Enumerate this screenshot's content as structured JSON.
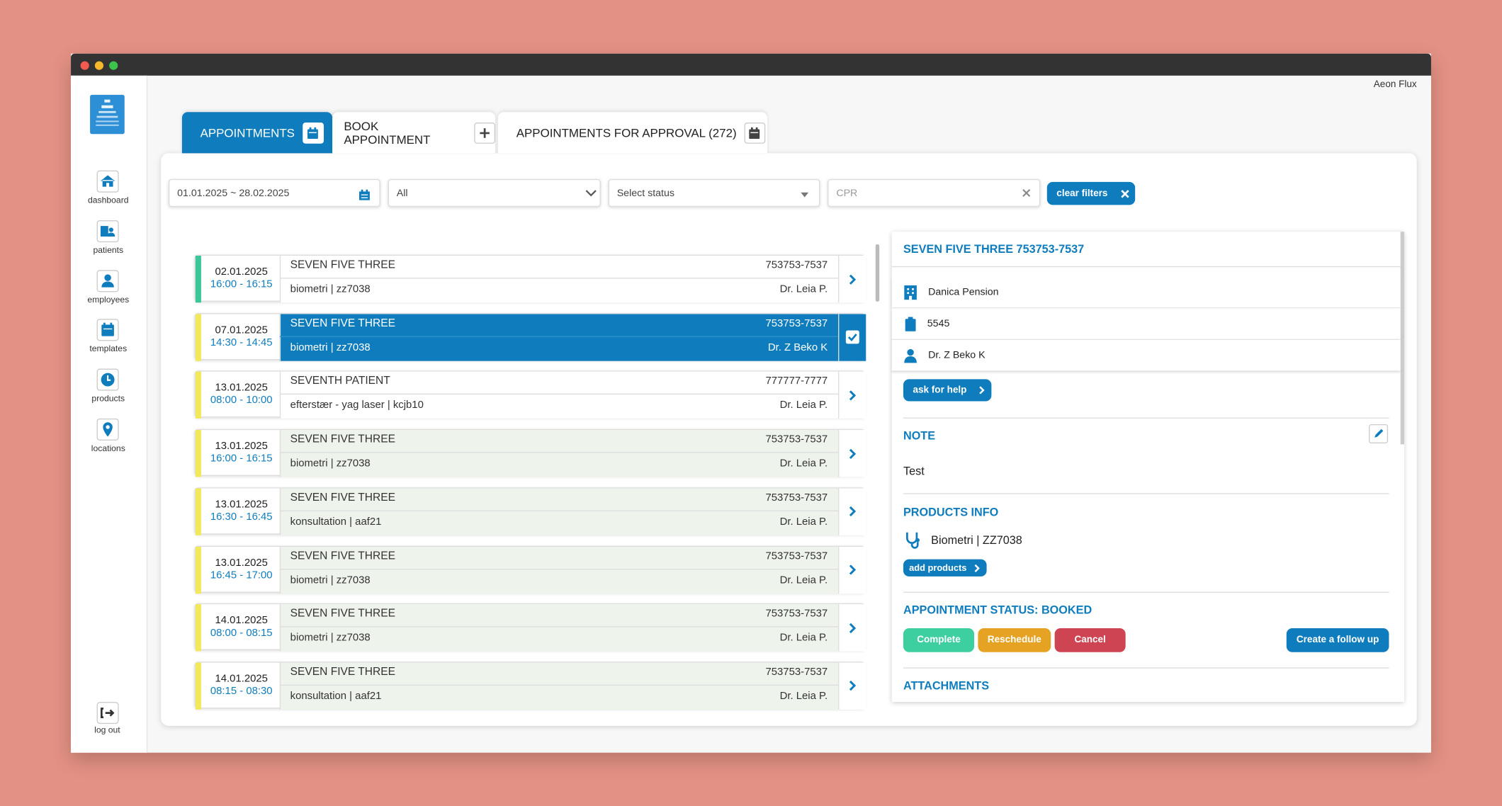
{
  "window": {
    "user": "Aeon Flux"
  },
  "nav": [
    {
      "label": "dashboard"
    },
    {
      "label": "patients"
    },
    {
      "label": "employees"
    },
    {
      "label": "templates"
    },
    {
      "label": "products"
    },
    {
      "label": "locations"
    }
  ],
  "logout": "log out",
  "tabs": [
    {
      "label": "APPOINTMENTS",
      "active": true
    },
    {
      "label": "BOOK APPOINTMENT",
      "active": false
    },
    {
      "label": "APPOINTMENTS FOR APPROVAL (272)",
      "active": false
    }
  ],
  "filters": {
    "date_range": "01.01.2025 ~ 28.02.2025",
    "location": "All",
    "status": "Select status",
    "cpr": "CPR",
    "clear": "clear filters"
  },
  "appointments": [
    {
      "date": "02.01.2025",
      "time": "16:00 - 16:15",
      "name": "SEVEN FIVE THREE",
      "cpr": "753753-7537",
      "description": "biometri | zz7038",
      "doctor": "Dr. Leia P.",
      "accent": "#3cc79b",
      "shaded": false,
      "selected": false
    },
    {
      "date": "07.01.2025",
      "time": "14:30 - 14:45",
      "name": "SEVEN FIVE THREE",
      "cpr": "753753-7537",
      "description": "biometri | zz7038",
      "doctor": "Dr. Z Beko K",
      "accent": "#f2e85b",
      "shaded": false,
      "selected": true
    },
    {
      "date": "13.01.2025",
      "time": "08:00 - 10:00",
      "name": "SEVENTH PATIENT",
      "cpr": "777777-7777",
      "description": "efterstær - yag laser | kcjb10",
      "doctor": "Dr. Leia P.",
      "accent": "#f2e85b",
      "shaded": false,
      "selected": false
    },
    {
      "date": "13.01.2025",
      "time": "16:00 - 16:15",
      "name": "SEVEN FIVE THREE",
      "cpr": "753753-7537",
      "description": "biometri | zz7038",
      "doctor": "Dr. Leia P.",
      "accent": "#f2e85b",
      "shaded": true,
      "selected": false
    },
    {
      "date": "13.01.2025",
      "time": "16:30 - 16:45",
      "name": "SEVEN FIVE THREE",
      "cpr": "753753-7537",
      "description": "konsultation | aaf21",
      "doctor": "Dr. Leia P.",
      "accent": "#f2e85b",
      "shaded": true,
      "selected": false
    },
    {
      "date": "13.01.2025",
      "time": "16:45 - 17:00",
      "name": "SEVEN FIVE THREE",
      "cpr": "753753-7537",
      "description": "biometri | zz7038",
      "doctor": "Dr. Leia P.",
      "accent": "#f2e85b",
      "shaded": true,
      "selected": false
    },
    {
      "date": "14.01.2025",
      "time": "08:00 - 08:15",
      "name": "SEVEN FIVE THREE",
      "cpr": "753753-7537",
      "description": "biometri | zz7038",
      "doctor": "Dr. Leia P.",
      "accent": "#f2e85b",
      "shaded": true,
      "selected": false
    },
    {
      "date": "14.01.2025",
      "time": "08:15 - 08:30",
      "name": "SEVEN FIVE THREE",
      "cpr": "753753-7537",
      "description": "konsultation | aaf21",
      "doctor": "Dr. Leia P.",
      "accent": "#f2e85b",
      "shaded": true,
      "selected": false
    }
  ],
  "detail": {
    "header": "SEVEN FIVE THREE 753753-7537",
    "insurance": "Danica Pension",
    "code": "5545",
    "doctor": "Dr. Z Beko K",
    "ask_help": "ask for help",
    "note_title": "NOTE",
    "note": "Test",
    "products_title": "PRODUCTS INFO",
    "product": "Biometri | ZZ7038",
    "add_products": "add products",
    "status_title": "APPOINTMENT STATUS: BOOKED",
    "complete": "Complete",
    "reschedule": "Reschedule",
    "cancel": "Cancel",
    "follow_up": "Create a follow up",
    "attachments_title": "ATTACHMENTS"
  }
}
